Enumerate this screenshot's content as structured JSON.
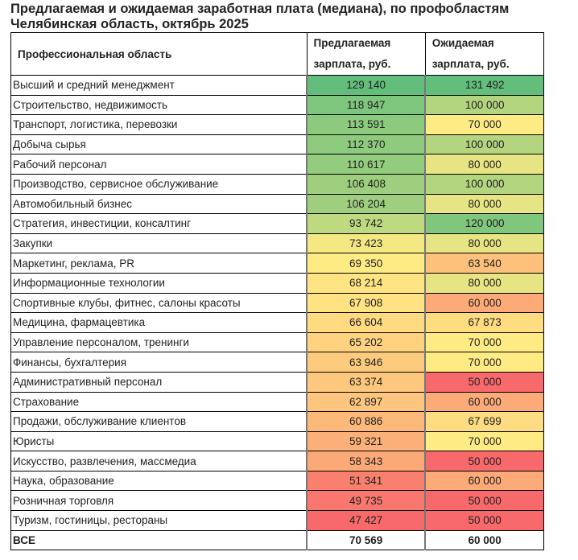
{
  "title_line1": "Предлагаемая и ожидаемая заработная плата (медиана), по профобластям",
  "title_line2": "Челябинская область, октябрь 2025",
  "headers": {
    "area": "Профессиональная область",
    "offered_1": "Предлагаемая",
    "offered_2": "зарплата, руб.",
    "expected_1": "Ожидаемая",
    "expected_2": "зарплата, руб."
  },
  "color_scale": {
    "low": "#f8696b",
    "mid": "#ffeb84",
    "high": "#63be7b"
  },
  "scale_params": {
    "offered": {
      "min": 47427,
      "mid": 69350,
      "max": 129140
    },
    "expected": {
      "min": 50000,
      "mid": 70000,
      "max": 131492
    }
  },
  "rows": [
    {
      "area": "Высший и средний менеджмент",
      "offered": "129 140",
      "expected": "131 492"
    },
    {
      "area": "Строительство, недвижимость",
      "offered": "118 947",
      "expected": "100 000"
    },
    {
      "area": "Транспорт, логистика, перевозки",
      "offered": "113 591",
      "expected": "70 000"
    },
    {
      "area": "Добыча сырья",
      "offered": "112 370",
      "expected": "100 000"
    },
    {
      "area": "Рабочий персонал",
      "offered": "110 617",
      "expected": "80 000"
    },
    {
      "area": "Производство, сервисное обслуживание",
      "offered": "106 408",
      "expected": "100 000"
    },
    {
      "area": "Автомобильный бизнес",
      "offered": "106 204",
      "expected": "80 000"
    },
    {
      "area": "Стратегия, инвестиции, консалтинг",
      "offered": "93 742",
      "expected": "120 000"
    },
    {
      "area": "Закупки",
      "offered": "73 423",
      "expected": "80 000"
    },
    {
      "area": "Маркетинг, реклама, PR",
      "offered": "69 350",
      "expected": "63 540"
    },
    {
      "area": "Информационные технологии",
      "offered": "68 214",
      "expected": "80 000"
    },
    {
      "area": "Спортивные клубы, фитнес, салоны красоты",
      "offered": "67 908",
      "expected": "60 000"
    },
    {
      "area": "Медицина, фармацевтика",
      "offered": "66 604",
      "expected": "67 873"
    },
    {
      "area": "Управление персоналом, тренинги",
      "offered": "65 202",
      "expected": "70 000"
    },
    {
      "area": "Финансы, бухгалтерия",
      "offered": "63 946",
      "expected": "70 000"
    },
    {
      "area": "Административный персонал",
      "offered": "63 374",
      "expected": "50 000"
    },
    {
      "area": "Страхование",
      "offered": "62 897",
      "expected": "60 000"
    },
    {
      "area": "Продажи, обслуживание клиентов",
      "offered": "60 886",
      "expected": "67 699"
    },
    {
      "area": "Юристы",
      "offered": "59 321",
      "expected": "70 000"
    },
    {
      "area": "Искусство, развлечения, массмедиа",
      "offered": "58 343",
      "expected": "50 000"
    },
    {
      "area": "Наука, образование",
      "offered": "51 341",
      "expected": "60 000"
    },
    {
      "area": "Розничная торговля",
      "offered": "49 735",
      "expected": "50 000"
    },
    {
      "area": "Туризм, гостиницы, рестораны",
      "offered": "47 427",
      "expected": "50 000"
    }
  ],
  "total": {
    "area": "ВСЕ",
    "offered": "70 569",
    "expected": "60 000"
  }
}
